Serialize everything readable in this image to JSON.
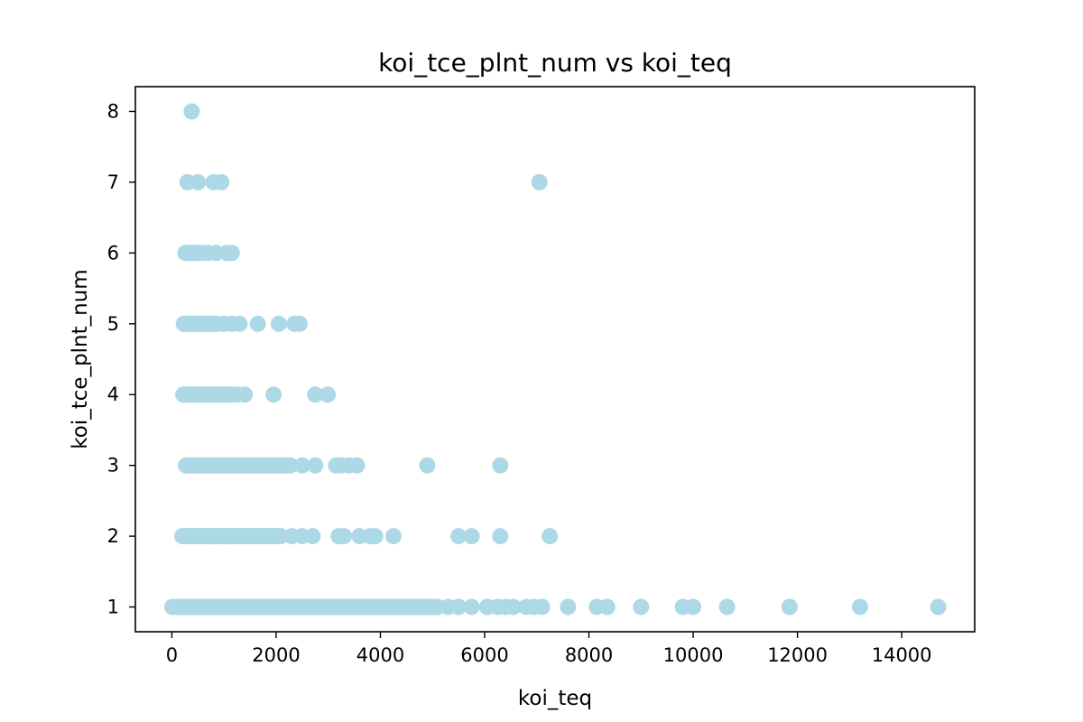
{
  "chart_data": {
    "type": "scatter",
    "title": "koi_tce_plnt_num vs koi_teq",
    "xlabel": "koi_teq",
    "ylabel": "koi_tce_plnt_num",
    "xlim": [
      -700,
      15400
    ],
    "ylim": [
      0.65,
      8.35
    ],
    "xticks": [
      0,
      2000,
      4000,
      6000,
      8000,
      10000,
      12000,
      14000
    ],
    "yticks": [
      1,
      2,
      3,
      4,
      5,
      6,
      7,
      8
    ],
    "grid": false,
    "color": "#add8e6",
    "points": [
      [
        380,
        8
      ],
      [
        7050,
        7
      ],
      [
        10,
        1
      ]
    ],
    "dense_ranges": [
      {
        "y": 1,
        "x_from": 90,
        "x_to": 5100
      },
      {
        "y": 2,
        "x_from": 200,
        "x_to": 2100
      },
      {
        "y": 3,
        "x_from": 270,
        "x_to": 2300
      },
      {
        "y": 4,
        "x_from": 220,
        "x_to": 1100
      },
      {
        "y": 5,
        "x_from": 230,
        "x_to": 900
      },
      {
        "y": 6,
        "x_from": 260,
        "x_to": 600
      }
    ],
    "sparse_points": {
      "1": [
        5300,
        5500,
        5750,
        6050,
        6250,
        6400,
        6550,
        6800,
        6950,
        7100,
        7600,
        8150,
        8350,
        9000,
        9800,
        10000,
        10650,
        11850,
        13200,
        14700
      ],
      "2": [
        2300,
        2500,
        2700,
        3200,
        3300,
        3600,
        3800,
        3900,
        4250,
        5500,
        5750,
        6300,
        7250
      ],
      "3": [
        2500,
        2750,
        3150,
        3250,
        3400,
        3550,
        4900,
        6300
      ],
      "4": [
        1150,
        1250,
        1400,
        1950,
        2750,
        2990
      ],
      "5": [
        1000,
        1150,
        1300,
        1650,
        2050,
        2350,
        2450
      ],
      "6": [
        700,
        850,
        1050,
        1150
      ],
      "7": [
        300,
        500,
        800,
        950
      ]
    }
  }
}
